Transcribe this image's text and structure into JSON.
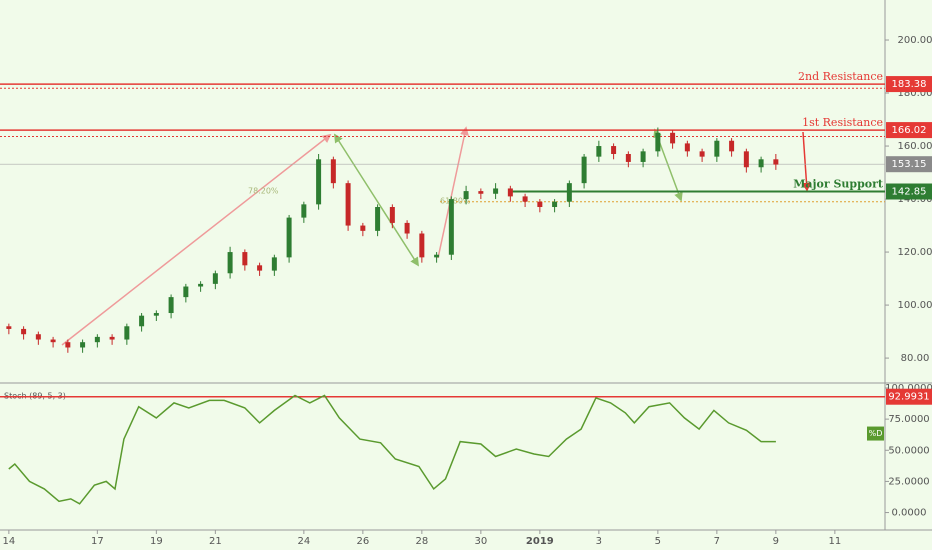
{
  "chart_data": [
    {
      "type": "candlestick",
      "x": [
        0,
        0.5,
        1,
        1.5,
        2,
        2.5,
        3,
        3.5,
        4,
        4.5,
        5,
        5.5,
        6,
        6.5,
        7,
        7.5,
        8,
        8.5,
        9,
        9.5,
        10,
        10.5,
        11,
        11.5,
        12,
        12.5,
        13,
        13.5,
        14,
        14.5,
        15,
        15.5,
        16,
        16.5,
        17,
        17.5,
        18,
        18.5,
        19,
        19.5,
        20,
        20.5,
        21,
        21.5,
        22,
        22.5,
        23,
        23.5,
        24,
        24.5,
        25,
        25.5,
        26
      ],
      "open": [
        92,
        91,
        89,
        87,
        86,
        84,
        86,
        88,
        87,
        92,
        96,
        97,
        103,
        107,
        108,
        112,
        120,
        115,
        113,
        118,
        133,
        138,
        155,
        146,
        130,
        128,
        137,
        131,
        127,
        118,
        119,
        140,
        143,
        142,
        144,
        141,
        139,
        137,
        139,
        146,
        156,
        160,
        157,
        154,
        158,
        165,
        161,
        158,
        156,
        162,
        158,
        152,
        155
      ],
      "high": [
        93,
        92,
        90,
        88,
        87,
        87,
        89,
        89,
        93,
        97,
        98,
        104,
        108,
        109,
        113,
        122,
        121,
        116,
        119,
        134,
        139,
        157,
        156,
        147,
        131,
        138,
        138,
        132,
        128,
        120,
        141,
        145,
        144,
        146,
        145,
        142,
        140,
        140,
        147,
        157,
        162,
        161,
        158,
        159,
        167,
        166,
        162,
        159,
        163,
        163,
        159,
        156,
        157
      ],
      "low": [
        89,
        87,
        85,
        84,
        82,
        82,
        84,
        85,
        85,
        90,
        94,
        95,
        101,
        105,
        106,
        110,
        113,
        111,
        111,
        116,
        131,
        136,
        144,
        128,
        126,
        126,
        129,
        125,
        116,
        116,
        117,
        138,
        140,
        140,
        139,
        137,
        135,
        135,
        137,
        144,
        154,
        155,
        152,
        152,
        156,
        159,
        156,
        154,
        154,
        156,
        150,
        150,
        151
      ],
      "close": [
        91,
        89,
        87,
        86,
        84,
        86,
        88,
        87,
        92,
        96,
        97,
        103,
        107,
        108,
        112,
        120,
        115,
        113,
        118,
        133,
        138,
        155,
        146,
        130,
        128,
        137,
        131,
        127,
        118,
        119,
        140,
        143,
        142,
        144,
        141,
        139,
        137,
        139,
        146,
        156,
        160,
        157,
        154,
        158,
        165,
        161,
        158,
        156,
        162,
        158,
        152,
        155,
        153
      ],
      "up_color": "#2e7d32",
      "down_color": "#c62828",
      "xlim": [
        -0.3,
        29.7
      ],
      "xticks": [
        {
          "value": 0,
          "label": "14"
        },
        {
          "value": 3,
          "label": "17"
        },
        {
          "value": 5,
          "label": "19"
        },
        {
          "value": 7,
          "label": "21"
        },
        {
          "value": 10,
          "label": "24"
        },
        {
          "value": 12,
          "label": "26"
        },
        {
          "value": 14,
          "label": "28"
        },
        {
          "value": 16,
          "label": "30"
        },
        {
          "value": 18,
          "label": "2019"
        },
        {
          "value": 20,
          "label": "3"
        },
        {
          "value": 22,
          "label": "5"
        },
        {
          "value": 24,
          "label": "7"
        },
        {
          "value": 26,
          "label": "9"
        },
        {
          "value": 28,
          "label": "11"
        }
      ],
      "ylim": [
        70.6,
        215.1
      ],
      "yticks": [
        {
          "value": 80,
          "label": "80.00"
        },
        {
          "value": 100,
          "label": "100.00"
        },
        {
          "value": 120,
          "label": "120.00"
        },
        {
          "value": 140,
          "label": "140.00"
        },
        {
          "value": 160,
          "label": "160.00"
        },
        {
          "value": 180,
          "label": "180.00"
        },
        {
          "value": 200,
          "label": "200.00"
        }
      ],
      "levels": [
        {
          "name": "2nd Resistance",
          "value": 183.38,
          "color": "#e53935"
        },
        {
          "name": "1st Resistance",
          "value": 166.02,
          "color": "#e53935"
        },
        {
          "name": "Major Support",
          "value": 142.85,
          "color": "#2e7d32"
        }
      ],
      "last_price": 153.15,
      "guide_lines": [
        {
          "value": 181.8,
          "color": "#e53935"
        },
        {
          "value": 163.6,
          "color": "#e53935"
        },
        {
          "value": 139,
          "color": "#e0a030"
        }
      ],
      "annotations": [
        "78.20%",
        "61.80%"
      ]
    },
    {
      "type": "line",
      "title": "Stoch (89, 5, 3)",
      "series": [
        {
          "name": "%D",
          "color": "#5a9a2e",
          "x": [
            0,
            0.2,
            0.7,
            1.2,
            1.7,
            2.1,
            2.4,
            2.9,
            3.3,
            3.6,
            3.9,
            4.4,
            5,
            5.6,
            6.1,
            6.8,
            7.3,
            8,
            8.5,
            9,
            9.7,
            10.2,
            10.7,
            11.2,
            11.9,
            12.6,
            13.1,
            13.9,
            14.4,
            14.8,
            15.3,
            16,
            16.5,
            17.2,
            17.8,
            18.3,
            18.9,
            19.4,
            19.9,
            20.4,
            20.9,
            21.2,
            21.7,
            22.4,
            22.9,
            23.4,
            23.9,
            24.4,
            25,
            25.5,
            26
          ],
          "values": [
            35,
            39,
            25,
            19,
            9,
            11,
            7,
            22,
            25,
            19,
            59,
            85,
            76,
            88,
            84,
            90,
            90,
            84,
            72,
            82,
            94,
            88,
            94,
            76,
            59,
            56,
            43,
            37,
            19,
            27,
            57,
            55,
            45,
            51,
            47,
            45,
            59,
            67,
            92,
            88,
            80,
            72,
            85,
            88,
            76,
            67,
            82,
            72,
            66,
            57,
            57
          ]
        }
      ],
      "xlim": [
        -0.3,
        29.7
      ],
      "ylim": [
        -14,
        104
      ],
      "yticks": [
        {
          "value": 0,
          "label": "0.0000"
        },
        {
          "value": 25,
          "label": "25.0000"
        },
        {
          "value": 50,
          "label": "50.0000"
        },
        {
          "value": 75,
          "label": "75.0000"
        },
        {
          "value": 100,
          "label": "100.0000"
        }
      ],
      "level": {
        "value": 92.9931,
        "color": "#e53935"
      }
    }
  ]
}
